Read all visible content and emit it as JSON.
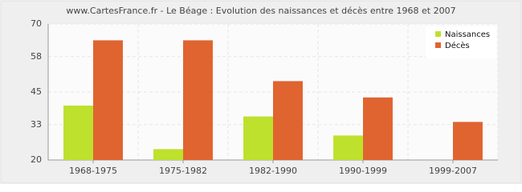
{
  "chart_data": {
    "type": "bar",
    "title": "www.CartesFrance.fr - Le Béage : Evolution des naissances et décès entre 1968 et 2007",
    "categories": [
      "1968-1975",
      "1975-1982",
      "1982-1990",
      "1990-1999",
      "1999-2007"
    ],
    "series": [
      {
        "name": "Naissances",
        "color": "#bde12d",
        "values": [
          40,
          24,
          36,
          29,
          20
        ]
      },
      {
        "name": "Décès",
        "color": "#e06430",
        "values": [
          64,
          64,
          49,
          43,
          34
        ]
      }
    ],
    "ylim": [
      20,
      70
    ],
    "yticks": [
      20,
      33,
      45,
      58,
      70
    ],
    "grid": true,
    "legend": "top-right"
  }
}
